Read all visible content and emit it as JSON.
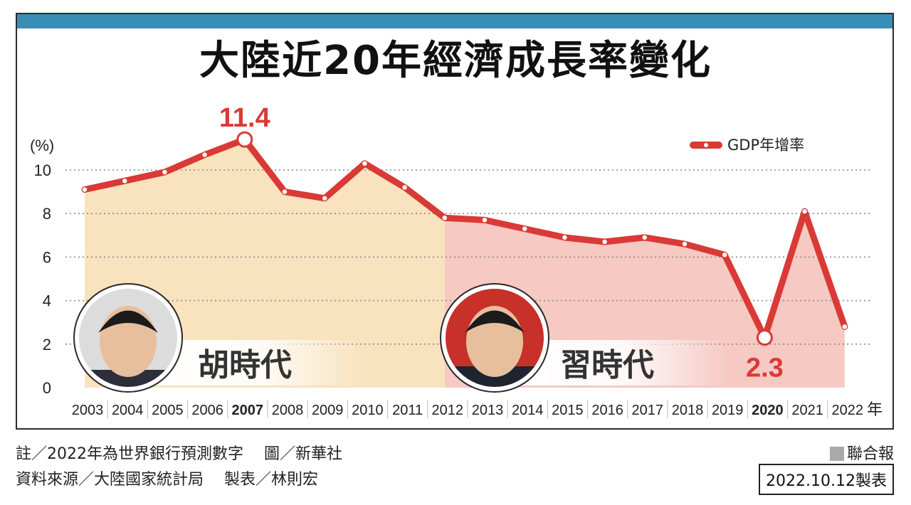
{
  "title": "大陸近20年經濟成長率變化",
  "chart_data": {
    "type": "line",
    "title": "大陸近20年經濟成長率變化",
    "ylabel": "(%)",
    "xunit": "年",
    "ylim": [
      0,
      12
    ],
    "yticks": [
      0,
      2,
      4,
      6,
      8,
      10
    ],
    "grid": true,
    "legend_position": "top-right",
    "categories": [
      "2003",
      "2004",
      "2005",
      "2006",
      "2007",
      "2008",
      "2009",
      "2010",
      "2011",
      "2012",
      "2013",
      "2014",
      "2015",
      "2016",
      "2017",
      "2018",
      "2019",
      "2020",
      "2021",
      "2022"
    ],
    "bold_categories": [
      "2007",
      "2020"
    ],
    "series": [
      {
        "name": "GDP年增率",
        "values": [
          9.1,
          9.5,
          9.9,
          10.7,
          11.4,
          9.0,
          8.7,
          10.3,
          9.2,
          7.8,
          7.7,
          7.3,
          6.9,
          6.7,
          6.9,
          6.6,
          6.1,
          2.3,
          8.1,
          2.8
        ]
      }
    ],
    "annotations": [
      {
        "category": "2007",
        "text": "11.4"
      },
      {
        "category": "2020",
        "text": "2.3"
      }
    ],
    "eras": [
      {
        "label": "胡時代",
        "start": "2003",
        "end": "2012",
        "color": "#f9e2be"
      },
      {
        "label": "習時代",
        "start": "2012",
        "end": "2022",
        "color": "#f6c9c3"
      }
    ]
  },
  "colors": {
    "line": "#d93a36",
    "era1": "#f9e2be",
    "era2": "#f6c9c3",
    "topbar": "#3a8db5"
  },
  "notes": {
    "line1": "註／2022年為世界銀行預測數字　 圖／新華社",
    "line2": "資料來源／大陸國家統計局　 製表／林則宏"
  },
  "brand": "聯合報",
  "date": "2022.10.12製表"
}
